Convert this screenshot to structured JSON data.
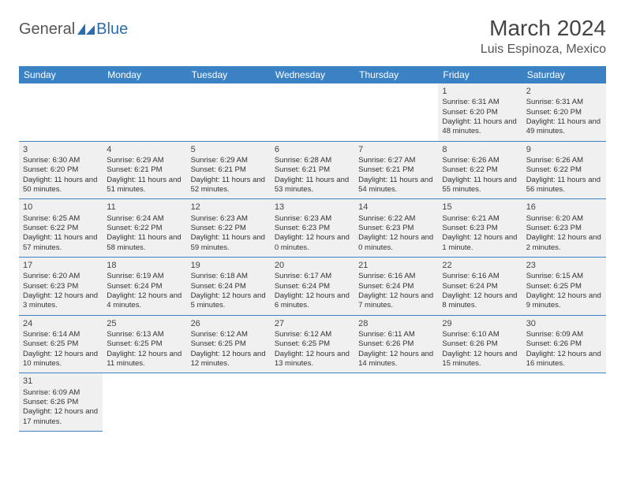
{
  "brand": {
    "part1": "General",
    "part2": "Blue",
    "icon_color": "#2a6eb0"
  },
  "title": "March 2024",
  "location": "Luis Espinoza, Mexico",
  "colors": {
    "header_bg": "#3b82c4",
    "header_text": "#ffffff",
    "cell_filled_bg": "#f0f0f0",
    "cell_border": "#3b82c4",
    "text": "#333333"
  },
  "weekdays": [
    "Sunday",
    "Monday",
    "Tuesday",
    "Wednesday",
    "Thursday",
    "Friday",
    "Saturday"
  ],
  "rows": [
    [
      null,
      null,
      null,
      null,
      null,
      {
        "n": "1",
        "sr": "6:31 AM",
        "ss": "6:20 PM",
        "dl": "11 hours and 48 minutes."
      },
      {
        "n": "2",
        "sr": "6:31 AM",
        "ss": "6:20 PM",
        "dl": "11 hours and 49 minutes."
      }
    ],
    [
      {
        "n": "3",
        "sr": "6:30 AM",
        "ss": "6:20 PM",
        "dl": "11 hours and 50 minutes."
      },
      {
        "n": "4",
        "sr": "6:29 AM",
        "ss": "6:21 PM",
        "dl": "11 hours and 51 minutes."
      },
      {
        "n": "5",
        "sr": "6:29 AM",
        "ss": "6:21 PM",
        "dl": "11 hours and 52 minutes."
      },
      {
        "n": "6",
        "sr": "6:28 AM",
        "ss": "6:21 PM",
        "dl": "11 hours and 53 minutes."
      },
      {
        "n": "7",
        "sr": "6:27 AM",
        "ss": "6:21 PM",
        "dl": "11 hours and 54 minutes."
      },
      {
        "n": "8",
        "sr": "6:26 AM",
        "ss": "6:22 PM",
        "dl": "11 hours and 55 minutes."
      },
      {
        "n": "9",
        "sr": "6:26 AM",
        "ss": "6:22 PM",
        "dl": "11 hours and 56 minutes."
      }
    ],
    [
      {
        "n": "10",
        "sr": "6:25 AM",
        "ss": "6:22 PM",
        "dl": "11 hours and 57 minutes."
      },
      {
        "n": "11",
        "sr": "6:24 AM",
        "ss": "6:22 PM",
        "dl": "11 hours and 58 minutes."
      },
      {
        "n": "12",
        "sr": "6:23 AM",
        "ss": "6:22 PM",
        "dl": "11 hours and 59 minutes."
      },
      {
        "n": "13",
        "sr": "6:23 AM",
        "ss": "6:23 PM",
        "dl": "12 hours and 0 minutes."
      },
      {
        "n": "14",
        "sr": "6:22 AM",
        "ss": "6:23 PM",
        "dl": "12 hours and 0 minutes."
      },
      {
        "n": "15",
        "sr": "6:21 AM",
        "ss": "6:23 PM",
        "dl": "12 hours and 1 minute."
      },
      {
        "n": "16",
        "sr": "6:20 AM",
        "ss": "6:23 PM",
        "dl": "12 hours and 2 minutes."
      }
    ],
    [
      {
        "n": "17",
        "sr": "6:20 AM",
        "ss": "6:23 PM",
        "dl": "12 hours and 3 minutes."
      },
      {
        "n": "18",
        "sr": "6:19 AM",
        "ss": "6:24 PM",
        "dl": "12 hours and 4 minutes."
      },
      {
        "n": "19",
        "sr": "6:18 AM",
        "ss": "6:24 PM",
        "dl": "12 hours and 5 minutes."
      },
      {
        "n": "20",
        "sr": "6:17 AM",
        "ss": "6:24 PM",
        "dl": "12 hours and 6 minutes."
      },
      {
        "n": "21",
        "sr": "6:16 AM",
        "ss": "6:24 PM",
        "dl": "12 hours and 7 minutes."
      },
      {
        "n": "22",
        "sr": "6:16 AM",
        "ss": "6:24 PM",
        "dl": "12 hours and 8 minutes."
      },
      {
        "n": "23",
        "sr": "6:15 AM",
        "ss": "6:25 PM",
        "dl": "12 hours and 9 minutes."
      }
    ],
    [
      {
        "n": "24",
        "sr": "6:14 AM",
        "ss": "6:25 PM",
        "dl": "12 hours and 10 minutes."
      },
      {
        "n": "25",
        "sr": "6:13 AM",
        "ss": "6:25 PM",
        "dl": "12 hours and 11 minutes."
      },
      {
        "n": "26",
        "sr": "6:12 AM",
        "ss": "6:25 PM",
        "dl": "12 hours and 12 minutes."
      },
      {
        "n": "27",
        "sr": "6:12 AM",
        "ss": "6:25 PM",
        "dl": "12 hours and 13 minutes."
      },
      {
        "n": "28",
        "sr": "6:11 AM",
        "ss": "6:26 PM",
        "dl": "12 hours and 14 minutes."
      },
      {
        "n": "29",
        "sr": "6:10 AM",
        "ss": "6:26 PM",
        "dl": "12 hours and 15 minutes."
      },
      {
        "n": "30",
        "sr": "6:09 AM",
        "ss": "6:26 PM",
        "dl": "12 hours and 16 minutes."
      }
    ],
    [
      {
        "n": "31",
        "sr": "6:09 AM",
        "ss": "6:26 PM",
        "dl": "12 hours and 17 minutes."
      },
      null,
      null,
      null,
      null,
      null,
      null
    ]
  ],
  "labels": {
    "sunrise": "Sunrise:",
    "sunset": "Sunset:",
    "daylight": "Daylight:"
  }
}
